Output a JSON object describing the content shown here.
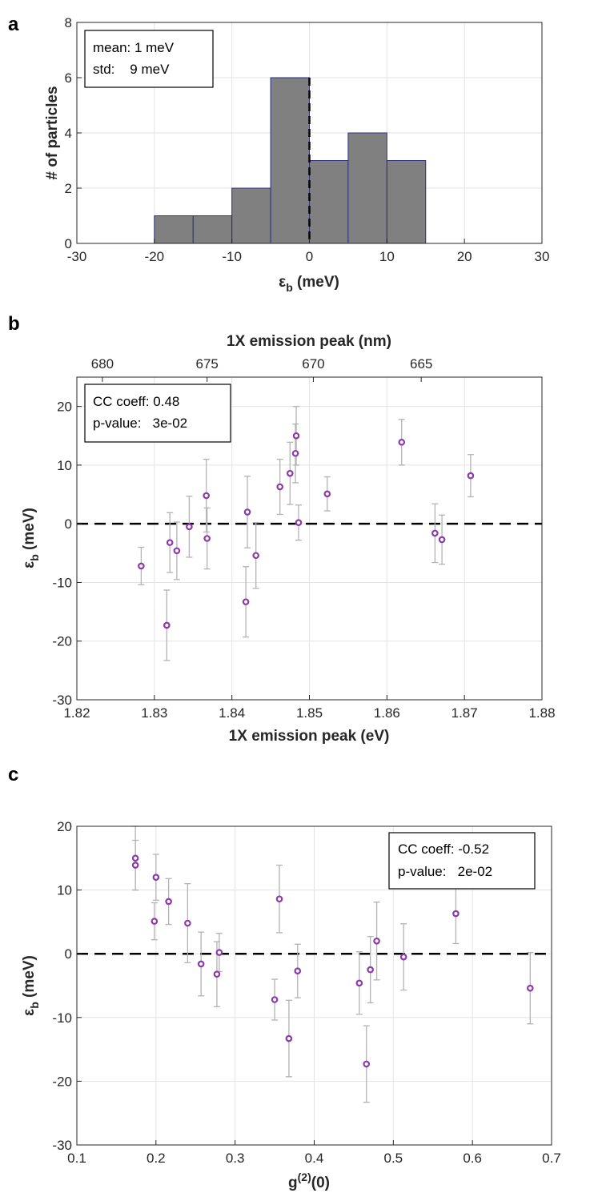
{
  "chart_data": [
    {
      "type": "bar",
      "panel_label": "a",
      "bin_edges": [
        -20,
        -15,
        -10,
        -5,
        0,
        5,
        10,
        15
      ],
      "counts": [
        1,
        1,
        2,
        6,
        3,
        4,
        3
      ],
      "xlim": [
        -30,
        30
      ],
      "ylim": [
        0,
        8
      ],
      "xticks": [
        "-30",
        "-20",
        "-10",
        "0",
        "10",
        "20",
        "30"
      ],
      "yticks": [
        "0",
        "2",
        "4",
        "6",
        "8"
      ],
      "xlabel_main": "ε",
      "xlabel_sub": "b",
      "xlabel_tail": " (meV)",
      "ylabel": "# of particles",
      "annotation": [
        "mean: 1 meV",
        "std:    9 meV"
      ],
      "reference_line_x": 0,
      "grid": true
    },
    {
      "type": "scatter",
      "panel_label": "b",
      "points": [
        {
          "x": 1.8283,
          "y": -7.2,
          "err": 3.2
        },
        {
          "x": 1.8316,
          "y": -17.3,
          "err": 6.0
        },
        {
          "x": 1.832,
          "y": -3.2,
          "err": 5.1
        },
        {
          "x": 1.8329,
          "y": -4.6,
          "err": 4.9
        },
        {
          "x": 1.8345,
          "y": -0.5,
          "err": 5.2
        },
        {
          "x": 1.8367,
          "y": 4.8,
          "err": 6.2
        },
        {
          "x": 1.8368,
          "y": -2.5,
          "err": 5.2
        },
        {
          "x": 1.8418,
          "y": -13.3,
          "err": 6.0
        },
        {
          "x": 1.842,
          "y": 2.0,
          "err": 6.1
        },
        {
          "x": 1.8431,
          "y": -5.4,
          "err": 5.6
        },
        {
          "x": 1.8462,
          "y": 6.3,
          "err": 4.7
        },
        {
          "x": 1.8475,
          "y": 8.6,
          "err": 5.3
        },
        {
          "x": 1.8482,
          "y": 12.0,
          "err": 5.0
        },
        {
          "x": 1.8483,
          "y": 15.0,
          "err": 5.0
        },
        {
          "x": 1.8486,
          "y": 0.2,
          "err": 3.0
        },
        {
          "x": 1.8523,
          "y": 5.1,
          "err": 2.9
        },
        {
          "x": 1.8619,
          "y": 13.9,
          "err": 3.9
        },
        {
          "x": 1.8662,
          "y": -1.6,
          "err": 5.0
        },
        {
          "x": 1.8671,
          "y": -2.7,
          "err": 4.2
        },
        {
          "x": 1.8708,
          "y": 8.2,
          "err": 3.6
        }
      ],
      "xlim": [
        1.82,
        1.88
      ],
      "ylim": [
        -30,
        25
      ],
      "xticks": [
        "1.82",
        "1.83",
        "1.84",
        "1.85",
        "1.86",
        "1.87",
        "1.88"
      ],
      "yticks": [
        "-30",
        "-20",
        "-10",
        "0",
        "10",
        "20"
      ],
      "top_ticks_nm": [
        680,
        675,
        670,
        665
      ],
      "top_tick_labels": [
        "680",
        "675",
        "670",
        "665"
      ],
      "xlabel": "1X emission peak (eV)",
      "top_xlabel": "1X emission peak (nm)",
      "ylabel_main": "ε",
      "ylabel_sub": "b",
      "ylabel_tail": " (meV)",
      "annotation": [
        "CC coeff: 0.48",
        "p-value:   3e-02"
      ],
      "reference_line_y": 0,
      "marker_color": "#8b3aa8",
      "errorbar_color": "#b3b3b3",
      "grid": true
    },
    {
      "type": "scatter",
      "panel_label": "c",
      "points": [
        {
          "x": 0.174,
          "y": 15.0,
          "err": 5.0
        },
        {
          "x": 0.174,
          "y": 13.9,
          "err": 3.9
        },
        {
          "x": 0.198,
          "y": 5.1,
          "err": 2.9
        },
        {
          "x": 0.2,
          "y": 12.0,
          "err": 3.6
        },
        {
          "x": 0.216,
          "y": 8.2,
          "err": 3.6
        },
        {
          "x": 0.24,
          "y": 4.8,
          "err": 6.2
        },
        {
          "x": 0.257,
          "y": -1.6,
          "err": 5.0
        },
        {
          "x": 0.277,
          "y": -3.2,
          "err": 5.1
        },
        {
          "x": 0.28,
          "y": 0.2,
          "err": 3.0
        },
        {
          "x": 0.35,
          "y": -7.2,
          "err": 3.2
        },
        {
          "x": 0.356,
          "y": 8.6,
          "err": 5.3
        },
        {
          "x": 0.368,
          "y": -13.3,
          "err": 6.0
        },
        {
          "x": 0.379,
          "y": -2.7,
          "err": 4.2
        },
        {
          "x": 0.457,
          "y": -4.6,
          "err": 4.9
        },
        {
          "x": 0.466,
          "y": -17.3,
          "err": 6.0
        },
        {
          "x": 0.471,
          "y": -2.5,
          "err": 5.2
        },
        {
          "x": 0.479,
          "y": 2.0,
          "err": 6.1
        },
        {
          "x": 0.513,
          "y": -0.5,
          "err": 5.2
        },
        {
          "x": 0.579,
          "y": 6.3,
          "err": 4.7
        },
        {
          "x": 0.673,
          "y": -5.4,
          "err": 5.6
        }
      ],
      "xlim": [
        0.1,
        0.7
      ],
      "ylim": [
        -30,
        20
      ],
      "xticks": [
        "0.1",
        "0.2",
        "0.3",
        "0.4",
        "0.5",
        "0.6",
        "0.7"
      ],
      "yticks": [
        "-30",
        "-20",
        "-10",
        "0",
        "10",
        "20"
      ],
      "xlabel_main": "g",
      "xlabel_sup": "(2)",
      "xlabel_tail": "(0)",
      "ylabel_main": "ε",
      "ylabel_sub": "b",
      "ylabel_tail": " (meV)",
      "annotation": [
        "CC coeff: -0.52",
        "p-value:   2e-02"
      ],
      "reference_line_y": 0,
      "marker_color": "#8b3aa8",
      "errorbar_color": "#b3b3b3",
      "grid": true
    }
  ]
}
